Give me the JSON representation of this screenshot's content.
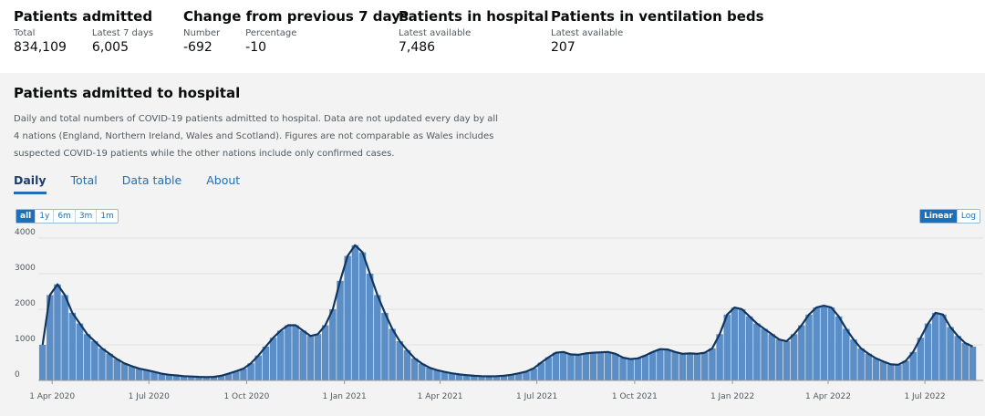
{
  "header": {
    "stats": [
      {
        "title": "Patients admitted",
        "items": [
          {
            "label": "Total",
            "value": "834,109"
          },
          {
            "label": "Latest 7 days",
            "value": "6,005"
          }
        ]
      },
      {
        "title": "Change from previous 7 days",
        "items": [
          {
            "label": "Number",
            "value": "-692"
          },
          {
            "label": "Percentage",
            "value": "-10"
          }
        ]
      },
      {
        "title": "Patients in hospital",
        "items": [
          {
            "label": "Latest available",
            "value": "7,486"
          }
        ]
      },
      {
        "title": "Patients in ventilation beds",
        "items": [
          {
            "label": "Latest available",
            "value": "207"
          }
        ]
      }
    ]
  },
  "card": {
    "title": "Patients admitted to hospital",
    "description": "Daily and total numbers of COVID-19 patients admitted to hospital. Data are not updated every day by all 4 nations (England, Northern Ireland, Wales and Scotland). Figures are not comparable as Wales includes suspected COVID-19 patients while the other nations include only confirmed cases.",
    "tabs": [
      "Daily",
      "Total",
      "Data table",
      "About"
    ],
    "ranges": [
      "all",
      "1y",
      "6m",
      "3m",
      "1m"
    ],
    "scales": [
      "Linear",
      "Log"
    ]
  },
  "chart_data": {
    "type": "bar",
    "x": [
      "2020-03-23",
      "2020-03-30",
      "2020-04-06",
      "2020-04-13",
      "2020-04-20",
      "2020-04-27",
      "2020-05-04",
      "2020-05-11",
      "2020-05-18",
      "2020-05-25",
      "2020-06-01",
      "2020-06-08",
      "2020-06-15",
      "2020-06-22",
      "2020-06-29",
      "2020-07-06",
      "2020-07-13",
      "2020-07-20",
      "2020-07-27",
      "2020-08-03",
      "2020-08-10",
      "2020-08-17",
      "2020-08-24",
      "2020-08-31",
      "2020-09-07",
      "2020-09-14",
      "2020-09-21",
      "2020-09-28",
      "2020-10-05",
      "2020-10-12",
      "2020-10-19",
      "2020-10-26",
      "2020-11-02",
      "2020-11-09",
      "2020-11-16",
      "2020-11-23",
      "2020-11-30",
      "2020-12-07",
      "2020-12-14",
      "2020-12-21",
      "2020-12-28",
      "2021-01-04",
      "2021-01-11",
      "2021-01-18",
      "2021-01-25",
      "2021-02-01",
      "2021-02-08",
      "2021-02-15",
      "2021-02-22",
      "2021-03-01",
      "2021-03-08",
      "2021-03-15",
      "2021-03-22",
      "2021-03-29",
      "2021-04-05",
      "2021-04-12",
      "2021-04-19",
      "2021-04-26",
      "2021-05-03",
      "2021-05-10",
      "2021-05-17",
      "2021-05-24",
      "2021-05-31",
      "2021-06-07",
      "2021-06-14",
      "2021-06-21",
      "2021-06-28",
      "2021-07-05",
      "2021-07-12",
      "2021-07-19",
      "2021-07-26",
      "2021-08-02",
      "2021-08-09",
      "2021-08-16",
      "2021-08-23",
      "2021-08-30",
      "2021-09-06",
      "2021-09-13",
      "2021-09-20",
      "2021-09-27",
      "2021-10-04",
      "2021-10-11",
      "2021-10-18",
      "2021-10-25",
      "2021-11-01",
      "2021-11-08",
      "2021-11-15",
      "2021-11-22",
      "2021-11-29",
      "2021-12-06",
      "2021-12-13",
      "2021-12-20",
      "2021-12-27",
      "2022-01-03",
      "2022-01-10",
      "2022-01-17",
      "2022-01-24",
      "2022-01-31",
      "2022-02-07",
      "2022-02-14",
      "2022-02-21",
      "2022-02-28",
      "2022-03-07",
      "2022-03-14",
      "2022-03-21",
      "2022-03-28",
      "2022-04-04",
      "2022-04-11",
      "2022-04-18",
      "2022-04-25",
      "2022-05-02",
      "2022-05-09",
      "2022-05-16",
      "2022-05-23",
      "2022-05-30",
      "2022-06-06",
      "2022-06-13",
      "2022-06-20",
      "2022-06-27",
      "2022-07-04",
      "2022-07-11",
      "2022-07-18",
      "2022-07-25",
      "2022-08-01",
      "2022-08-08",
      "2022-08-15"
    ],
    "values": [
      1000,
      2400,
      2700,
      2400,
      1900,
      1600,
      1300,
      1100,
      900,
      750,
      600,
      480,
      400,
      330,
      290,
      240,
      190,
      160,
      140,
      120,
      110,
      100,
      95,
      100,
      130,
      190,
      260,
      330,
      480,
      700,
      950,
      1200,
      1400,
      1550,
      1550,
      1400,
      1250,
      1300,
      1550,
      2000,
      2800,
      3500,
      3800,
      3600,
      3000,
      2400,
      1900,
      1450,
      1100,
      850,
      620,
      470,
      360,
      290,
      240,
      200,
      170,
      150,
      130,
      120,
      115,
      120,
      130,
      160,
      200,
      250,
      340,
      500,
      650,
      780,
      800,
      730,
      720,
      760,
      780,
      790,
      800,
      750,
      640,
      600,
      620,
      700,
      800,
      880,
      870,
      800,
      750,
      760,
      750,
      780,
      900,
      1300,
      1850,
      2050,
      2000,
      1800,
      1600,
      1450,
      1300,
      1150,
      1100,
      1300,
      1550,
      1850,
      2050,
      2100,
      2050,
      1800,
      1450,
      1150,
      900,
      750,
      620,
      530,
      450,
      440,
      550,
      800,
      1200,
      1600,
      1900,
      1850,
      1500,
      1250,
      1050,
      950
    ],
    "color": "#5b8ec7",
    "line_color": "#12365f",
    "xlim": [
      "2020-03-19",
      "2022-08-18"
    ],
    "xticks": [
      {
        "value": "2020-04-01",
        "label": "1 Apr 2020"
      },
      {
        "value": "2020-07-01",
        "label": "1 Jul 2020"
      },
      {
        "value": "2020-10-01",
        "label": "1 Oct 2020"
      },
      {
        "value": "2021-01-01",
        "label": "1 Jan 2021"
      },
      {
        "value": "2021-04-01",
        "label": "1 Apr 2021"
      },
      {
        "value": "2021-07-01",
        "label": "1 Jul 2021"
      },
      {
        "value": "2021-10-01",
        "label": "1 Oct 2021"
      },
      {
        "value": "2022-01-01",
        "label": "1 Jan 2022"
      },
      {
        "value": "2022-04-01",
        "label": "1 Apr 2022"
      },
      {
        "value": "2022-07-01",
        "label": "1 Jul 2022"
      }
    ],
    "ylim": [
      0,
      4000
    ],
    "yticks": [
      0,
      1000,
      2000,
      3000,
      4000
    ],
    "grid": true
  }
}
